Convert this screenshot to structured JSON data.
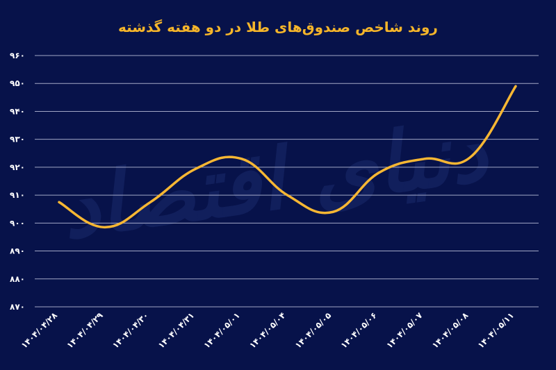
{
  "colors": {
    "background": "#07124a",
    "title": "#f5b52a",
    "line": "#f7b733",
    "grid": "#c9cde6",
    "tick_text": "#ffffff",
    "watermark": "#1a2a6c"
  },
  "watermark_text": "دنیای اقتصاد",
  "chart_data": {
    "type": "line",
    "title": "روند شاخص صندوق‌های طلا در دو هفته گذشته",
    "xlabel": "",
    "ylabel": "",
    "categories": [
      "۱۴۰۴/۰۴/۲۸",
      "۱۴۰۴/۰۴/۲۹",
      "۱۴۰۴/۰۴/۳۰",
      "۱۴۰۴/۰۴/۳۱",
      "۱۴۰۴/۰۵/۰۱",
      "۱۴۰۴/۰۵/۰۴",
      "۱۴۰۴/۰۵/۰۵",
      "۱۴۰۴/۰۵/۰۶",
      "۱۴۰۴/۰۵/۰۷",
      "۱۴۰۴/۰۵/۰۸",
      "۱۴۰۴/۰۵/۱۱"
    ],
    "series": [
      {
        "values": [
          907.5,
          898.5,
          907.5,
          919.5,
          923.0,
          910.0,
          904.0,
          918.0,
          923.0,
          923.5,
          949.0
        ]
      }
    ],
    "ylim": [
      870,
      960
    ],
    "yticks": [
      "۸۷۰",
      "۸۸۰",
      "۸۹۰",
      "۹۰۰",
      "۹۱۰",
      "۹۲۰",
      "۹۳۰",
      "۹۴۰",
      "۹۵۰",
      "۹۶۰"
    ],
    "ytick_values": [
      870,
      880,
      890,
      900,
      910,
      920,
      930,
      940,
      950,
      960
    ],
    "grid": true,
    "legend": "none"
  }
}
